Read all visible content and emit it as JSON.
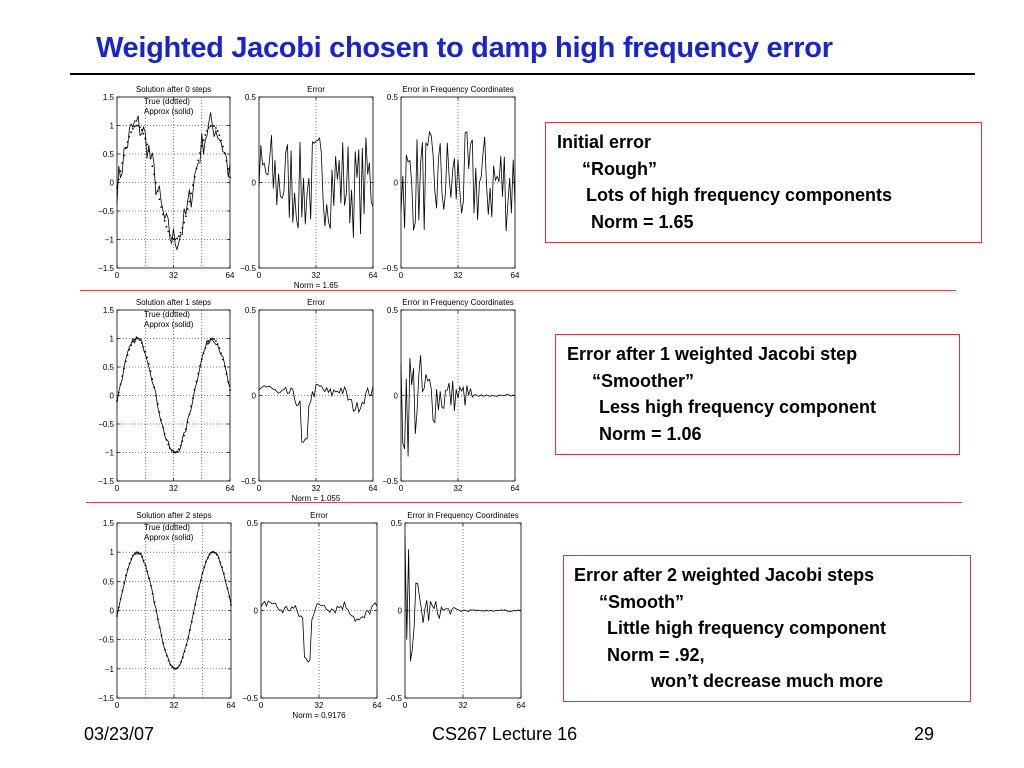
{
  "slide": {
    "title": "Weighted Jacobi chosen to damp high frequency error",
    "footer_date": "03/23/07",
    "footer_center": "CS267 Lecture 16",
    "footer_page": "29"
  },
  "callouts": [
    {
      "lines": [
        "Initial error",
        "“Rough”",
        "Lots of high frequency components",
        "Norm = 1.65"
      ]
    },
    {
      "lines": [
        "Error after 1 weighted Jacobi step",
        "“Smoother”",
        "Less high frequency component",
        "Norm = 1.06"
      ]
    },
    {
      "lines": [
        "Error after 2 weighted Jacobi steps",
        "“Smooth”",
        "Little high frequency component",
        "Norm = .92,",
        "won’t decrease much more"
      ]
    }
  ],
  "chart_data": [
    {
      "type": "line",
      "title": "Solution after 0 steps",
      "legend": [
        "True (dotted)",
        "Approx (solid)"
      ],
      "x_ticks": [
        "0",
        "32",
        "64"
      ],
      "y_ticks": [
        "1.5",
        "1",
        "0.5",
        "0",
        "−0.5",
        "−1",
        "−1.5"
      ],
      "xlim": [
        0,
        64
      ],
      "ylim": [
        -1.5,
        1.5
      ],
      "grid": true,
      "roughness": 0.28
    },
    {
      "type": "line",
      "title": "Error",
      "x_ticks": [
        "0",
        "32",
        "64"
      ],
      "y_ticks": [
        "0.5",
        "0",
        "−0.5"
      ],
      "xlim": [
        0,
        64
      ],
      "ylim": [
        -0.5,
        0.5
      ],
      "xlabel": "Norm = 1.65",
      "amplitude": 0.28
    },
    {
      "type": "line",
      "title": "Error in Frequency Coordinates",
      "x_ticks": [
        "0",
        "32",
        "64"
      ],
      "y_ticks": [
        "0.5",
        "0",
        "−0.5"
      ],
      "xlim": [
        0,
        64
      ],
      "ylim": [
        -0.5,
        0.5
      ],
      "decay": 0
    },
    {
      "type": "line",
      "title": "Solution after 1 steps",
      "legend": [
        "True (dotted)",
        "Approx (solid)"
      ],
      "x_ticks": [
        "0",
        "32",
        "64"
      ],
      "y_ticks": [
        "1.5",
        "1",
        "0.5",
        "0",
        "−0.5",
        "−1",
        "−1.5"
      ],
      "xlim": [
        0,
        64
      ],
      "ylim": [
        -1.5,
        1.5
      ],
      "grid": true,
      "roughness": 0.06
    },
    {
      "type": "line",
      "title": "Error",
      "x_ticks": [
        "0",
        "32",
        "64"
      ],
      "y_ticks": [
        "0.5",
        "0",
        "−0.5"
      ],
      "xlim": [
        0,
        64
      ],
      "ylim": [
        -0.5,
        0.5
      ],
      "xlabel": "Norm = 1.055",
      "amplitude": 0.12
    },
    {
      "type": "line",
      "title": "Error in Frequency Coordinates",
      "x_ticks": [
        "0",
        "32",
        "64"
      ],
      "y_ticks": [
        "0.5",
        "0",
        "−0.5"
      ],
      "xlim": [
        0,
        64
      ],
      "ylim": [
        -0.5,
        0.5
      ],
      "decay": 0.05
    },
    {
      "type": "line",
      "title": "Solution after 2 steps",
      "legend": [
        "True (dotted)",
        "Approx (solid)"
      ],
      "x_ticks": [
        "0",
        "32",
        "64"
      ],
      "y_ticks": [
        "1.5",
        "1",
        "0.5",
        "0",
        "−0.5",
        "−1",
        "−1.5"
      ],
      "xlim": [
        0,
        64
      ],
      "ylim": [
        -1.5,
        1.5
      ],
      "grid": true,
      "roughness": 0.03
    },
    {
      "type": "line",
      "title": "Error",
      "x_ticks": [
        "0",
        "32",
        "64"
      ],
      "y_ticks": [
        "0.5",
        "0",
        "−0.5"
      ],
      "xlim": [
        0,
        64
      ],
      "ylim": [
        -0.5,
        0.5
      ],
      "xlabel": "Norm = 0.9176",
      "amplitude": 0.1
    },
    {
      "type": "line",
      "title": "Error in Frequency Coordinates",
      "x_ticks": [
        "0",
        "32",
        "64"
      ],
      "y_ticks": [
        "0.5",
        "0",
        "−0.5"
      ],
      "xlim": [
        0,
        64
      ],
      "ylim": [
        -0.5,
        0.5
      ],
      "decay": 0.12
    }
  ]
}
